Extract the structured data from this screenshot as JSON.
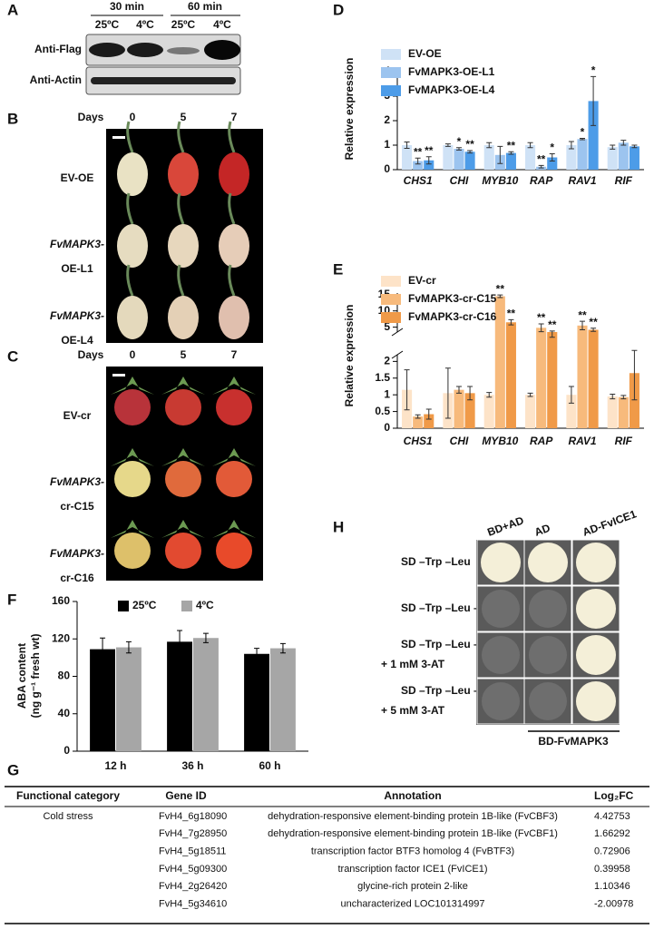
{
  "western_blot": {
    "label": "A",
    "time_points": [
      "30 min",
      "60 min"
    ],
    "temperatures": [
      "25ºC",
      "4ºC",
      "25ºC",
      "4ºC"
    ],
    "antibodies": [
      "Anti-Flag",
      "Anti-Actin"
    ]
  },
  "fruit_oe": {
    "label": "B",
    "days_title": "Days",
    "days": [
      "0",
      "5",
      "7"
    ],
    "lines": [
      [
        "EV-OE"
      ],
      [
        "FvMAPK3-",
        "OE-L1"
      ],
      [
        "FvMAPK3-",
        "OE-L4"
      ]
    ]
  },
  "fruit_cr": {
    "label": "C",
    "days_title": "Days",
    "days": [
      "0",
      "5",
      "7"
    ],
    "lines": [
      [
        "EV-cr"
      ],
      [
        "FvMAPK3-",
        "cr-C15"
      ],
      [
        "FvMAPK3-",
        "cr-C16"
      ]
    ]
  },
  "chart_data": [
    {
      "type": "bar",
      "panel_label": "D",
      "ylabel": "Relative expression",
      "categories": [
        "CHS1",
        "CHI",
        "MYB10",
        "RAP",
        "RAV1",
        "RIF"
      ],
      "series": [
        {
          "name": "EV-OE",
          "color": "#cfe2f6",
          "values": [
            1,
            1,
            1,
            1,
            1,
            0.92
          ],
          "errors": [
            0.13,
            0.05,
            0.1,
            0.1,
            0.15,
            0.08
          ]
        },
        {
          "name": "FvMAPK3-OE-L1",
          "color": "#9cc4ef",
          "values": [
            0.35,
            0.85,
            0.6,
            0.12,
            1.25,
            1.1
          ],
          "errors": [
            0.12,
            0.05,
            0.35,
            0.05,
            0.03,
            0.1
          ],
          "sig_labels": [
            "**",
            "*",
            null,
            "**",
            "*",
            null
          ]
        },
        {
          "name": "FvMAPK3-OE-L4",
          "color": "#4d9ce8",
          "values": [
            0.38,
            0.73,
            0.68,
            0.5,
            2.8,
            0.95
          ],
          "errors": [
            0.15,
            0.05,
            0.05,
            0.15,
            1.0,
            0.05
          ],
          "sig_labels": [
            "**",
            "**",
            "**",
            "*",
            "*",
            null
          ]
        }
      ],
      "ylim": [
        0,
        4
      ],
      "yticks": [
        0,
        1,
        2,
        3,
        4
      ],
      "legend": "upper left"
    },
    {
      "type": "bar",
      "panel_label": "E",
      "ylabel": "Relative expression",
      "categories": [
        "CHS1",
        "CHI",
        "MYB10",
        "RAP",
        "RAV1",
        "RIF"
      ],
      "series": [
        {
          "name": "EV-cr",
          "color": "#fde3c8",
          "values": [
            1.15,
            1.05,
            1.0,
            1.0,
            1.0,
            0.95
          ],
          "errors": [
            0.6,
            0.75,
            0.07,
            0.05,
            0.25,
            0.07
          ]
        },
        {
          "name": "FvMAPK3-cr-C15",
          "color": "#f7ba7c",
          "values": [
            0.35,
            1.15,
            14.5,
            4.8,
            5.5,
            0.93
          ],
          "errors": [
            0.05,
            0.1,
            0.4,
            1.2,
            1.3,
            0.05
          ],
          "sig_labels": [
            null,
            null,
            "**",
            "**",
            "**",
            null
          ]
        },
        {
          "name": "FvMAPK3-cr-C16",
          "color": "#f09a48",
          "values": [
            0.42,
            1.05,
            6.5,
            3.5,
            4.2,
            1.65
          ],
          "errors": [
            0.15,
            0.2,
            0.8,
            0.3,
            0.5,
            0.8
          ],
          "sig_labels": [
            null,
            null,
            "**",
            "**",
            "**",
            null
          ]
        }
      ],
      "ylim_segments": [
        [
          0,
          2.2
        ],
        [
          3.5,
          15.5
        ]
      ],
      "yticks": [
        0,
        0.5,
        1,
        1.5,
        2,
        5,
        10,
        15
      ],
      "legend": "upper left"
    },
    {
      "type": "bar",
      "panel_label": "F",
      "ylabel": [
        "ABA content",
        "(ng g⁻¹ fresh wt)"
      ],
      "categories": [
        "12 h",
        "36 h",
        "60 h"
      ],
      "series": [
        {
          "name": "25ºC",
          "color": "#000000",
          "values": [
            109,
            117,
            104
          ],
          "errors": [
            12,
            12,
            6
          ]
        },
        {
          "name": "4ºC",
          "color": "#a6a6a6",
          "values": [
            111,
            121,
            110
          ],
          "errors": [
            6,
            5,
            5
          ]
        }
      ],
      "ylim": [
        0,
        160
      ],
      "yticks": [
        0,
        40,
        80,
        120,
        160
      ],
      "legend": "upper center"
    }
  ],
  "y2h": {
    "label": "H",
    "columns": [
      "BD+AD",
      "AD",
      "AD-FvICE1"
    ],
    "media": [
      [
        "SD –Trp –Leu"
      ],
      [
        "SD –Trp –Leu –His –Ade"
      ],
      [
        "SD –Trp –Leu –His –Ade",
        "+ 1 mM 3-AT"
      ],
      [
        "SD –Trp –Leu –His –Ade",
        "+ 5 mM 3-AT"
      ]
    ],
    "bait": "BD-FvMAPK3"
  },
  "table": {
    "label": "G",
    "header": [
      "Functional category",
      "Gene ID",
      "Annotation",
      "Log₂FC"
    ],
    "rows": [
      [
        "Cold stress",
        "FvH4_6g18090",
        "dehydration-responsive element-binding protein 1B-like (FvCBF3)",
        4.42753
      ],
      [
        null,
        "FvH4_7g28950",
        "dehydration-responsive element-binding protein 1B-like (FvCBF1)",
        1.66292
      ],
      [
        null,
        "FvH4_5g18511",
        "transcription factor BTF3 homolog 4 (FvBTF3)",
        0.72906
      ],
      [
        null,
        "FvH4_5g09300",
        "transcription factor ICE1 (FvICE1)",
        0.39958
      ],
      [
        null,
        "FvH4_2g26420",
        "glycine-rich protein 2-like",
        1.10346
      ],
      [
        null,
        "FvH4_5g34610",
        "uncharacterized LOC101314997",
        -2.00978
      ]
    ]
  }
}
